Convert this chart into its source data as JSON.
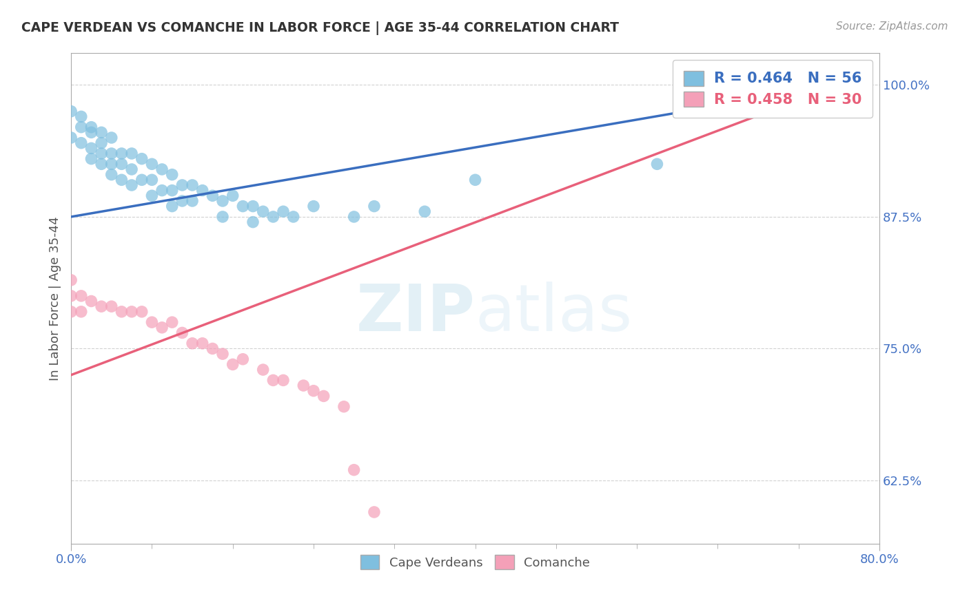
{
  "title": "CAPE VERDEAN VS COMANCHE IN LABOR FORCE | AGE 35-44 CORRELATION CHART",
  "source_text": "Source: ZipAtlas.com",
  "ylabel": "In Labor Force | Age 35-44",
  "xmin": 0.0,
  "xmax": 0.8,
  "ymin": 0.565,
  "ymax": 1.03,
  "yticks": [
    0.625,
    0.75,
    0.875,
    1.0
  ],
  "ytick_labels": [
    "62.5%",
    "75.0%",
    "87.5%",
    "100.0%"
  ],
  "xtick_labels": [
    "0.0%",
    "80.0%"
  ],
  "xticks": [
    0.0,
    0.8
  ],
  "legend_blue_label": "Cape Verdeans",
  "legend_pink_label": "Comanche",
  "blue_R": 0.464,
  "blue_N": 56,
  "pink_R": 0.458,
  "pink_N": 30,
  "blue_color": "#7fbfdf",
  "pink_color": "#f4a0b8",
  "blue_line_color": "#3a6ebf",
  "pink_line_color": "#e8607a",
  "watermark_zip": "ZIP",
  "watermark_atlas": "atlas",
  "blue_scatter_x": [
    0.0,
    0.0,
    0.01,
    0.01,
    0.01,
    0.02,
    0.02,
    0.02,
    0.02,
    0.03,
    0.03,
    0.03,
    0.03,
    0.04,
    0.04,
    0.04,
    0.04,
    0.05,
    0.05,
    0.05,
    0.06,
    0.06,
    0.06,
    0.07,
    0.07,
    0.08,
    0.08,
    0.08,
    0.09,
    0.09,
    0.1,
    0.1,
    0.1,
    0.11,
    0.11,
    0.12,
    0.12,
    0.13,
    0.14,
    0.15,
    0.15,
    0.16,
    0.17,
    0.18,
    0.18,
    0.19,
    0.2,
    0.21,
    0.22,
    0.24,
    0.28,
    0.3,
    0.35,
    0.4,
    0.58,
    0.76
  ],
  "blue_scatter_y": [
    0.975,
    0.95,
    0.97,
    0.96,
    0.945,
    0.96,
    0.955,
    0.94,
    0.93,
    0.955,
    0.945,
    0.935,
    0.925,
    0.95,
    0.935,
    0.925,
    0.915,
    0.935,
    0.925,
    0.91,
    0.935,
    0.92,
    0.905,
    0.93,
    0.91,
    0.925,
    0.91,
    0.895,
    0.92,
    0.9,
    0.915,
    0.9,
    0.885,
    0.905,
    0.89,
    0.905,
    0.89,
    0.9,
    0.895,
    0.89,
    0.875,
    0.895,
    0.885,
    0.885,
    0.87,
    0.88,
    0.875,
    0.88,
    0.875,
    0.885,
    0.875,
    0.885,
    0.88,
    0.91,
    0.925,
    1.0
  ],
  "pink_scatter_x": [
    0.0,
    0.0,
    0.0,
    0.01,
    0.01,
    0.02,
    0.03,
    0.04,
    0.05,
    0.06,
    0.07,
    0.08,
    0.09,
    0.1,
    0.11,
    0.12,
    0.13,
    0.14,
    0.15,
    0.16,
    0.17,
    0.19,
    0.2,
    0.21,
    0.23,
    0.24,
    0.25,
    0.27,
    0.28,
    0.3
  ],
  "pink_scatter_y": [
    0.815,
    0.8,
    0.785,
    0.8,
    0.785,
    0.795,
    0.79,
    0.79,
    0.785,
    0.785,
    0.785,
    0.775,
    0.77,
    0.775,
    0.765,
    0.755,
    0.755,
    0.75,
    0.745,
    0.735,
    0.74,
    0.73,
    0.72,
    0.72,
    0.715,
    0.71,
    0.705,
    0.695,
    0.635,
    0.595
  ],
  "blue_line_x": [
    0.0,
    0.76
  ],
  "blue_line_y": [
    0.875,
    1.0
  ],
  "pink_line_x": [
    0.0,
    0.76
  ],
  "pink_line_y": [
    0.725,
    1.0
  ]
}
